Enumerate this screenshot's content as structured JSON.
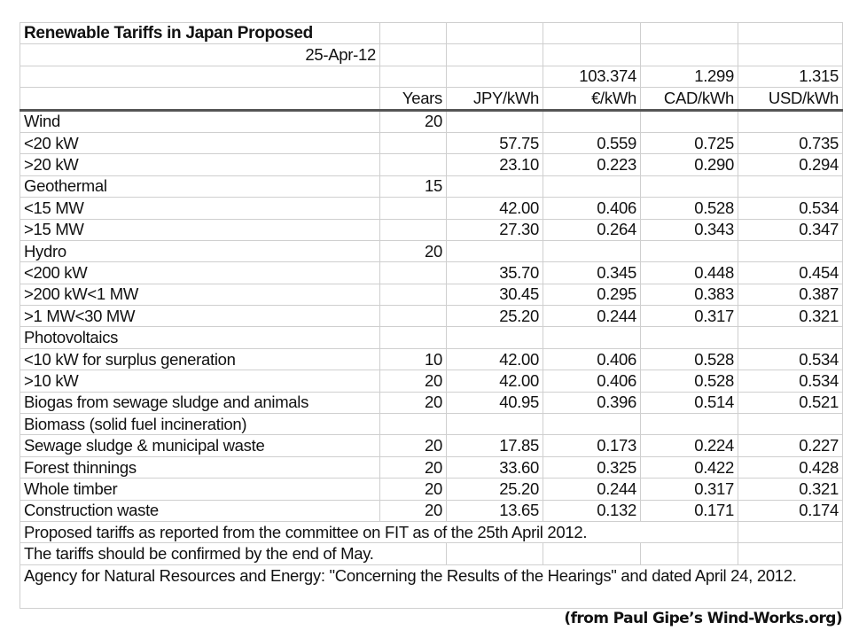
{
  "title": "Renewable Tariffs in Japan Proposed",
  "date": "25-Apr-12",
  "exchange_rates": {
    "eur": "103.374",
    "cad": "1.299",
    "usd": "1.315"
  },
  "headers": {
    "years": "Years",
    "jpy": "JPY/kWh",
    "eur": "€/kWh",
    "cad": "CAD/kWh",
    "usd": "USD/kWh"
  },
  "rows": [
    {
      "label": "Wind",
      "years": "20",
      "jpy": "",
      "eur": "",
      "cad": "",
      "usd": ""
    },
    {
      "label": "<20 kW",
      "years": "",
      "jpy": "57.75",
      "eur": "0.559",
      "cad": "0.725",
      "usd": "0.735"
    },
    {
      "label": ">20 kW",
      "years": "",
      "jpy": "23.10",
      "eur": "0.223",
      "cad": "0.290",
      "usd": "0.294"
    },
    {
      "label": "Geothermal",
      "years": "15",
      "jpy": "",
      "eur": "",
      "cad": "",
      "usd": ""
    },
    {
      "label": "<15 MW",
      "years": "",
      "jpy": "42.00",
      "eur": "0.406",
      "cad": "0.528",
      "usd": "0.534"
    },
    {
      "label": ">15 MW",
      "years": "",
      "jpy": "27.30",
      "eur": "0.264",
      "cad": "0.343",
      "usd": "0.347"
    },
    {
      "label": "Hydro",
      "years": "20",
      "jpy": "",
      "eur": "",
      "cad": "",
      "usd": ""
    },
    {
      "label": "<200 kW",
      "years": "",
      "jpy": "35.70",
      "eur": "0.345",
      "cad": "0.448",
      "usd": "0.454"
    },
    {
      "label": ">200 kW<1 MW",
      "years": "",
      "jpy": "30.45",
      "eur": "0.295",
      "cad": "0.383",
      "usd": "0.387"
    },
    {
      "label": ">1 MW<30 MW",
      "years": "",
      "jpy": "25.20",
      "eur": "0.244",
      "cad": "0.317",
      "usd": "0.321"
    },
    {
      "label": "Photovoltaics",
      "years": "",
      "jpy": "",
      "eur": "",
      "cad": "",
      "usd": ""
    },
    {
      "label": "<10 kW for surplus generation",
      "years": "10",
      "jpy": "42.00",
      "eur": "0.406",
      "cad": "0.528",
      "usd": "0.534"
    },
    {
      "label": ">10 kW",
      "years": "20",
      "jpy": "42.00",
      "eur": "0.406",
      "cad": "0.528",
      "usd": "0.534"
    },
    {
      "label": "Biogas from sewage sludge and animals",
      "years": "20",
      "jpy": "40.95",
      "eur": "0.396",
      "cad": "0.514",
      "usd": "0.521"
    },
    {
      "label": "Biomass (solid fuel incineration)",
      "years": "",
      "jpy": "",
      "eur": "",
      "cad": "",
      "usd": ""
    },
    {
      "label": "Sewage sludge & municipal waste",
      "years": "20",
      "jpy": "17.85",
      "eur": "0.173",
      "cad": "0.224",
      "usd": "0.227"
    },
    {
      "label": "Forest thinnings",
      "years": "20",
      "jpy": "33.60",
      "eur": "0.325",
      "cad": "0.422",
      "usd": "0.428"
    },
    {
      "label": "Whole timber",
      "years": "20",
      "jpy": "25.20",
      "eur": "0.244",
      "cad": "0.317",
      "usd": "0.321"
    },
    {
      "label": "Construction waste",
      "years": "20",
      "jpy": "13.65",
      "eur": "0.132",
      "cad": "0.171",
      "usd": "0.174"
    }
  ],
  "notes": [
    "Proposed tariffs as reported from the committee on FIT as of the 25th April 2012.",
    "The tariffs should be confirmed by the end of May.",
    "Agency for Natural Resources and Energy: \"Concerning the Results of the Hearings\" and dated April 24, 2012."
  ],
  "credit": "(from Paul Gipe’s Wind-Works.org)"
}
